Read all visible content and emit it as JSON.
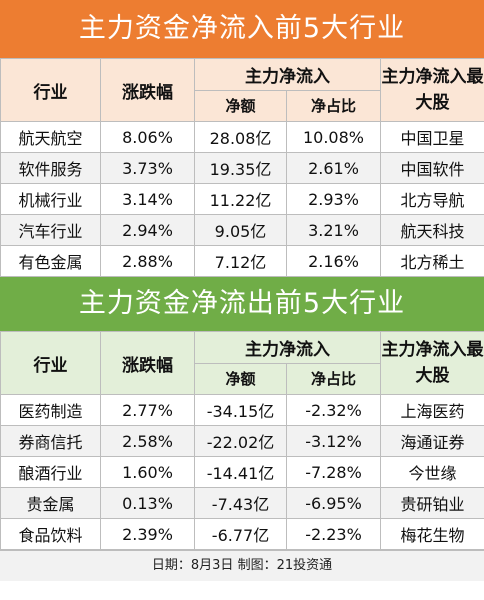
{
  "inflow": {
    "title": "主力资金净流入前5大行业",
    "headers": {
      "industry": "行业",
      "change": "涨跌幅",
      "net_flow_group": "主力净流入",
      "net_amount": "净额",
      "net_ratio": "净占比",
      "top_stock": "主力净流入最大股"
    },
    "rows": [
      {
        "industry": "航天航空",
        "change": "8.06%",
        "amount": "28.08亿",
        "ratio": "10.08%",
        "stock": "中国卫星"
      },
      {
        "industry": "软件服务",
        "change": "3.73%",
        "amount": "19.35亿",
        "ratio": "2.61%",
        "stock": "中国软件"
      },
      {
        "industry": "机械行业",
        "change": "3.14%",
        "amount": "11.22亿",
        "ratio": "2.93%",
        "stock": "北方导航"
      },
      {
        "industry": "汽车行业",
        "change": "2.94%",
        "amount": "9.05亿",
        "ratio": "3.21%",
        "stock": "航天科技"
      },
      {
        "industry": "有色金属",
        "change": "2.88%",
        "amount": "7.12亿",
        "ratio": "2.16%",
        "stock": "北方稀土"
      }
    ]
  },
  "outflow": {
    "title": "主力资金净流出前5大行业",
    "headers": {
      "industry": "行业",
      "change": "涨跌幅",
      "net_flow_group": "主力净流入",
      "net_amount": "净额",
      "net_ratio": "净占比",
      "top_stock": "主力净流入最大股"
    },
    "rows": [
      {
        "industry": "医药制造",
        "change": "2.77%",
        "amount": "-34.15亿",
        "ratio": "-2.32%",
        "stock": "上海医药"
      },
      {
        "industry": "券商信托",
        "change": "2.58%",
        "amount": "-22.02亿",
        "ratio": "-3.12%",
        "stock": "海通证券"
      },
      {
        "industry": "酿酒行业",
        "change": "1.60%",
        "amount": "-14.41亿",
        "ratio": "-7.28%",
        "stock": "今世缘"
      },
      {
        "industry": "贵金属",
        "change": "0.13%",
        "amount": "-7.43亿",
        "ratio": "-6.95%",
        "stock": "贵研铂业"
      },
      {
        "industry": "食品饮料",
        "change": "2.39%",
        "amount": "-6.77亿",
        "ratio": "-2.23%",
        "stock": "梅花生物"
      }
    ]
  },
  "footer": "日期：8月3日   制图：21投资通",
  "colors": {
    "inflow_title_bg": "#ed7d31",
    "inflow_header_bg": "#fbe6d6",
    "outflow_title_bg": "#70ad47",
    "outflow_header_bg": "#e3efd9",
    "row_alt_bg": "#f2f2f2"
  }
}
